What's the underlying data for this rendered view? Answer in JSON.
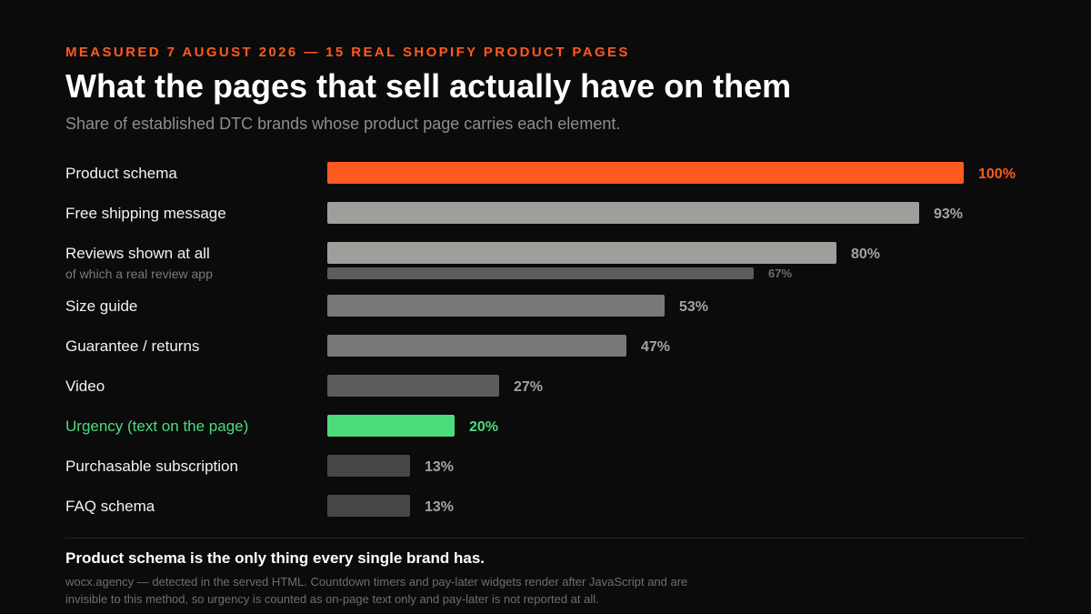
{
  "header": {
    "kicker": "MEASURED 7 AUGUST 2026 — 15 REAL SHOPIFY PRODUCT PAGES",
    "title": "What the pages that sell actually have on them",
    "subtitle": "Share of established DTC brands whose product page carries each element."
  },
  "chart_data": {
    "type": "bar",
    "orientation": "horizontal",
    "unit": "%",
    "xlim": [
      0,
      100
    ],
    "grid": false,
    "legend": "none",
    "bars": [
      {
        "label": "Product schema",
        "value": 100,
        "value_label": "100%",
        "color": "#ff5a1f",
        "label_color": "#ff5a1f"
      },
      {
        "label": "Free shipping message",
        "value": 93,
        "value_label": "93%",
        "color": "#9e9e9b",
        "label_color": "#a3a3a3"
      },
      {
        "label": "Reviews shown at all",
        "value": 80,
        "value_label": "80%",
        "color": "#9e9e9b",
        "label_color": "#a3a3a3",
        "sub": {
          "label": "of which a real review app",
          "value": 67,
          "value_label": "67%",
          "color": "#5c5c5c",
          "label_color": "#6e6e6e"
        }
      },
      {
        "label": "Size guide",
        "value": 53,
        "value_label": "53%",
        "color": "#787878",
        "label_color": "#a3a3a3"
      },
      {
        "label": "Guarantee / returns",
        "value": 47,
        "value_label": "47%",
        "color": "#787878",
        "label_color": "#a3a3a3"
      },
      {
        "label": "Video",
        "value": 27,
        "value_label": "27%",
        "color": "#5c5c5c",
        "label_color": "#a3a3a3"
      },
      {
        "label": "Urgency (text on the page)",
        "value": 20,
        "value_label": "20%",
        "color": "#4ddc7b",
        "label_color": "#4ddc7b",
        "category_color": "#4ddc7b"
      },
      {
        "label": "Purchasable subscription",
        "value": 13,
        "value_label": "13%",
        "color": "#474747",
        "label_color": "#a3a3a3"
      },
      {
        "label": "FAQ schema",
        "value": 13,
        "value_label": "13%",
        "color": "#474747",
        "label_color": "#a3a3a3"
      }
    ]
  },
  "footer": {
    "headline": "Product schema is the only thing every single brand has.",
    "note": "wocx.agency — detected in the served HTML. Countdown timers and pay-later widgets render after JavaScript and are invisible to this method, so urgency is counted as on-page text only and pay-later is not reported at all."
  }
}
